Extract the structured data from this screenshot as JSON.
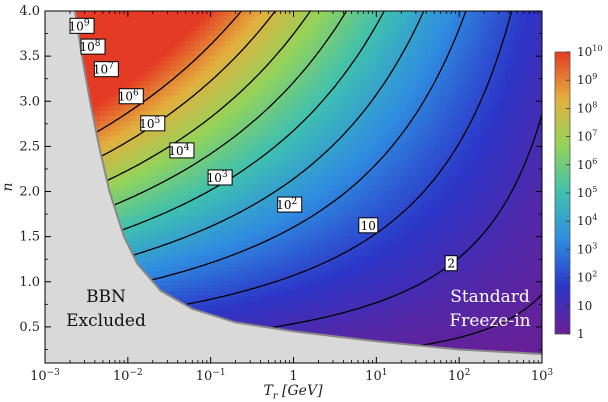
{
  "chart_data": {
    "type": "heatmap",
    "title": "",
    "xlabel": "T_r [GeV]",
    "ylabel": "n",
    "x_scale": "log",
    "xlim": [
      0.001,
      1000
    ],
    "ylim": [
      0.1,
      4.0
    ],
    "x_ticks": [
      {
        "value": 0.001,
        "base": "10",
        "exp": "−3"
      },
      {
        "value": 0.01,
        "base": "10",
        "exp": "−2"
      },
      {
        "value": 0.1,
        "base": "10",
        "exp": "−1"
      },
      {
        "value": 1,
        "base": "1",
        "exp": ""
      },
      {
        "value": 10,
        "base": "10",
        "exp": "1"
      },
      {
        "value": 100,
        "base": "10",
        "exp": "2"
      },
      {
        "value": 1000,
        "base": "10",
        "exp": "3"
      }
    ],
    "y_ticks": [
      "0.5",
      "1.0",
      "1.5",
      "2.0",
      "2.5",
      "3.0",
      "3.5",
      "4.0"
    ],
    "colorbar": {
      "scale": "log",
      "range": [
        1,
        10000000000
      ],
      "ticks": [
        {
          "value": 10000000000,
          "base": "10",
          "exp": "10"
        },
        {
          "value": 1000000000,
          "base": "10",
          "exp": "9"
        },
        {
          "value": 100000000,
          "base": "10",
          "exp": "8"
        },
        {
          "value": 10000000,
          "base": "10",
          "exp": "7"
        },
        {
          "value": 1000000,
          "base": "10",
          "exp": "6"
        },
        {
          "value": 100000,
          "base": "10",
          "exp": "5"
        },
        {
          "value": 10000,
          "base": "10",
          "exp": "4"
        },
        {
          "value": 1000,
          "base": "10",
          "exp": "3"
        },
        {
          "value": 100,
          "base": "10",
          "exp": "2"
        },
        {
          "value": 10,
          "base": "10",
          "exp": ""
        },
        {
          "value": 1,
          "base": "1",
          "exp": ""
        }
      ],
      "colors": [
        "#6a1f94",
        "#2c35c8",
        "#2f8de0",
        "#3fc0b0",
        "#93d35a",
        "#e3b03e",
        "#e53b24"
      ]
    },
    "contours": [
      {
        "level": 2,
        "base": "2",
        "exp": "",
        "label_at": [
          80,
          1.2
        ]
      },
      {
        "level": 10,
        "base": "10",
        "exp": "",
        "label_at": [
          8,
          1.62
        ]
      },
      {
        "level": 100,
        "base": "10",
        "exp": "2",
        "label_at": [
          0.9,
          1.85
        ]
      },
      {
        "level": 1000,
        "base": "10",
        "exp": "3",
        "label_at": [
          0.13,
          2.15
        ]
      },
      {
        "level": 10000,
        "base": "10",
        "exp": "4",
        "label_at": [
          0.045,
          2.45
        ]
      },
      {
        "level": 100000,
        "base": "10",
        "exp": "5",
        "label_at": [
          0.02,
          2.75
        ]
      },
      {
        "level": 1000000,
        "base": "10",
        "exp": "6",
        "label_at": [
          0.011,
          3.05
        ]
      },
      {
        "level": 10000000,
        "base": "10",
        "exp": "7",
        "label_at": [
          0.0055,
          3.35
        ]
      },
      {
        "level": 100000000,
        "base": "10",
        "exp": "8",
        "label_at": [
          0.0038,
          3.6
        ]
      },
      {
        "level": 1000000000,
        "base": "10",
        "exp": "9",
        "label_at": [
          0.0028,
          3.83
        ]
      }
    ],
    "excluded_boundary": [
      [
        0.0023,
        4.0
      ],
      [
        0.0028,
        3.5
      ],
      [
        0.0035,
        3.0
      ],
      [
        0.0045,
        2.5
      ],
      [
        0.006,
        2.0
      ],
      [
        0.009,
        1.5
      ],
      [
        0.013,
        1.2
      ],
      [
        0.025,
        0.9
      ],
      [
        0.06,
        0.7
      ],
      [
        0.2,
        0.55
      ],
      [
        1,
        0.45
      ],
      [
        10,
        0.34
      ],
      [
        100,
        0.25
      ],
      [
        1000,
        0.2
      ]
    ],
    "regions": {
      "excluded": {
        "lines": [
          "BBN",
          "Excluded"
        ],
        "color": "#d9d9d9"
      },
      "standard": {
        "lines": [
          "Standard",
          "Freeze-in"
        ]
      }
    }
  }
}
